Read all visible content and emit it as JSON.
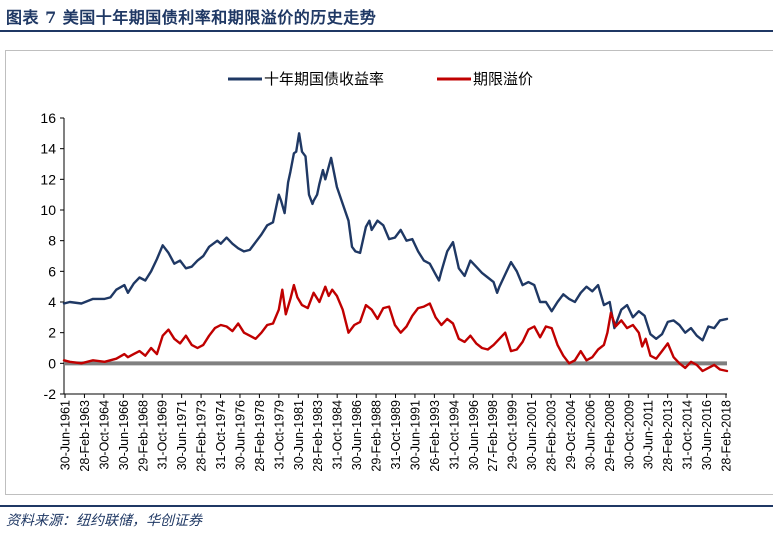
{
  "figure": {
    "title": "图表  7 美国十年期国债利率和期限溢价的历史走势",
    "source": "资料来源：纽约联储，华创证券"
  },
  "colors": {
    "yield": "#1f3864",
    "term_premium": "#c00000",
    "zero_line": "#808080",
    "title": "#1f3864"
  },
  "chart_data": {
    "type": "line",
    "title": "",
    "xlabel": "",
    "ylabel": "",
    "ylim": [
      -2,
      16
    ],
    "yticks": [
      "16",
      "14",
      "12",
      "10",
      "8",
      "6",
      "4",
      "2",
      "0",
      "-2"
    ],
    "x_range": [
      1961.5,
      2018.6
    ],
    "x_tick_labels": [
      "30-Jun-1961",
      "28-Feb-1963",
      "30-Oct-1964",
      "30-Jun-1966",
      "29-Feb-1968",
      "31-Oct-1969",
      "30-Jun-1971",
      "28-Feb-1973",
      "31-Oct-1974",
      "30-Jun-1976",
      "28-Feb-1978",
      "31-Oct-1979",
      "30-Jun-1981",
      "28-Feb-1983",
      "31-Oct-1984",
      "30-Jun-1986",
      "29-Feb-1988",
      "31-Oct-1989",
      "30-Jun-1991",
      "26-Feb-1993",
      "31-Oct-1994",
      "30-Jun-1996",
      "27-Feb-1998",
      "29-Oct-1999",
      "30-Jun-2001",
      "28-Feb-2003",
      "29-Oct-2004",
      "30-Jun-2006",
      "29-Feb-2008",
      "30-Oct-2009",
      "30-Jun-2011",
      "28-Feb-2013",
      "31-Oct-2014",
      "30-Jun-2016",
      "28-Feb-2018"
    ],
    "legend": [
      "十年期国债收益率",
      "期限溢价"
    ],
    "legend_position": "top-center",
    "series": [
      {
        "name": "十年期国债收益率",
        "x": [
          1961.5,
          1962,
          1963,
          1964,
          1965,
          1965.5,
          1966,
          1966.7,
          1967,
          1967.5,
          1968,
          1968.5,
          1969,
          1969.5,
          1970,
          1970.5,
          1971,
          1971.5,
          1972,
          1972.5,
          1973,
          1973.5,
          1974,
          1974.7,
          1975,
          1975.5,
          1976,
          1976.5,
          1977,
          1977.5,
          1978,
          1978.5,
          1979,
          1979.5,
          1980,
          1980.2,
          1980.5,
          1980.8,
          1981,
          1981.3,
          1981.5,
          1981.75,
          1982,
          1982.3,
          1982.6,
          1982.9,
          1983,
          1983.3,
          1983.5,
          1983.8,
          1984,
          1984.5,
          1985,
          1985.5,
          1986,
          1986.3,
          1986.6,
          1987,
          1987.5,
          1987.8,
          1988,
          1988.5,
          1989,
          1989.5,
          1990,
          1990.5,
          1991,
          1991.5,
          1992,
          1992.5,
          1993,
          1993.5,
          1993.8,
          1994,
          1994.5,
          1995,
          1995.5,
          1996,
          1996.5,
          1997,
          1997.5,
          1998,
          1998.5,
          1998.8,
          1999,
          1999.5,
          2000,
          2000.5,
          2001,
          2001.5,
          2002,
          2002.5,
          2003,
          2003.5,
          2004,
          2004.5,
          2005,
          2005.5,
          2006,
          2006.5,
          2007,
          2007.5,
          2008,
          2008.5,
          2008.9,
          2009,
          2009.5,
          2010,
          2010.5,
          2011,
          2011.5,
          2012,
          2012.5,
          2013,
          2013.5,
          2014,
          2014.5,
          2015,
          2015.5,
          2016,
          2016.5,
          2017,
          2017.5,
          2018,
          2018.6
        ],
        "values": [
          3.9,
          4.0,
          3.9,
          4.2,
          4.2,
          4.3,
          4.8,
          5.1,
          4.6,
          5.2,
          5.6,
          5.4,
          6.0,
          6.8,
          7.7,
          7.2,
          6.5,
          6.7,
          6.2,
          6.3,
          6.7,
          7.0,
          7.6,
          8.0,
          7.8,
          8.2,
          7.8,
          7.5,
          7.3,
          7.4,
          7.9,
          8.4,
          9.0,
          9.2,
          11.0,
          10.6,
          9.8,
          11.8,
          12.5,
          13.7,
          13.8,
          15.0,
          13.8,
          13.5,
          11.0,
          10.4,
          10.6,
          11.0,
          11.7,
          12.6,
          12.0,
          13.4,
          11.5,
          10.4,
          9.3,
          7.6,
          7.3,
          7.2,
          8.9,
          9.3,
          8.7,
          9.3,
          9.0,
          8.1,
          8.2,
          8.7,
          8.0,
          8.1,
          7.3,
          6.7,
          6.5,
          5.8,
          5.4,
          6.0,
          7.3,
          7.9,
          6.2,
          5.7,
          6.7,
          6.3,
          5.9,
          5.6,
          5.3,
          4.6,
          5.0,
          5.8,
          6.6,
          6.0,
          5.1,
          5.3,
          5.1,
          4.0,
          4.0,
          3.4,
          4.0,
          4.5,
          4.2,
          4.0,
          4.6,
          5.0,
          4.7,
          5.1,
          3.8,
          4.0,
          2.3,
          2.5,
          3.5,
          3.8,
          3.0,
          3.4,
          3.1,
          1.9,
          1.6,
          1.9,
          2.7,
          2.8,
          2.5,
          2.0,
          2.3,
          1.8,
          1.5,
          2.4,
          2.3,
          2.8,
          2.9
        ]
      },
      {
        "name": "期限溢价",
        "x": [
          1961.5,
          1962,
          1963,
          1964,
          1965,
          1966,
          1966.7,
          1967,
          1967.5,
          1968,
          1968.5,
          1969,
          1969.5,
          1970,
          1970.5,
          1971,
          1971.5,
          1972,
          1972.5,
          1973,
          1973.5,
          1974,
          1974.5,
          1975,
          1975.5,
          1976,
          1976.5,
          1977,
          1977.5,
          1978,
          1978.5,
          1979,
          1979.5,
          1980,
          1980.3,
          1980.6,
          1981,
          1981.3,
          1981.6,
          1982,
          1982.5,
          1983,
          1983.5,
          1984,
          1984.3,
          1984.6,
          1985,
          1985.5,
          1986,
          1986.5,
          1987,
          1987.5,
          1988,
          1988.5,
          1989,
          1989.5,
          1990,
          1990.5,
          1991,
          1991.5,
          1992,
          1992.5,
          1993,
          1993.5,
          1994,
          1994.5,
          1995,
          1995.5,
          1996,
          1996.5,
          1997,
          1997.5,
          1998,
          1998.5,
          1999,
          1999.5,
          2000,
          2000.5,
          2001,
          2001.5,
          2002,
          2002.5,
          2003,
          2003.5,
          2004,
          2004.5,
          2005,
          2005.5,
          2006,
          2006.5,
          2007,
          2007.5,
          2008,
          2008.3,
          2008.6,
          2009,
          2009.5,
          2010,
          2010.5,
          2011,
          2011.3,
          2011.6,
          2012,
          2012.5,
          2013,
          2013.5,
          2014,
          2014.5,
          2015,
          2015.5,
          2016,
          2016.5,
          2017,
          2017.5,
          2018,
          2018.6
        ],
        "values": [
          0.2,
          0.1,
          0.0,
          0.2,
          0.1,
          0.3,
          0.6,
          0.4,
          0.6,
          0.8,
          0.5,
          1.0,
          0.6,
          1.8,
          2.2,
          1.6,
          1.3,
          1.8,
          1.2,
          1.0,
          1.2,
          1.8,
          2.3,
          2.5,
          2.4,
          2.1,
          2.6,
          2.0,
          1.8,
          1.6,
          2.0,
          2.5,
          2.6,
          3.5,
          4.8,
          3.2,
          4.2,
          5.1,
          4.3,
          3.8,
          3.6,
          4.6,
          4.0,
          5.0,
          4.4,
          4.8,
          4.4,
          3.5,
          2.0,
          2.5,
          2.7,
          3.8,
          3.5,
          2.9,
          3.6,
          3.7,
          2.5,
          2.0,
          2.4,
          3.1,
          3.6,
          3.7,
          3.9,
          3.0,
          2.5,
          2.9,
          2.6,
          1.6,
          1.4,
          1.8,
          1.3,
          1.0,
          0.9,
          1.2,
          1.6,
          2.0,
          0.8,
          0.9,
          1.4,
          2.2,
          2.4,
          1.7,
          2.4,
          2.3,
          1.2,
          0.5,
          0.0,
          0.2,
          0.8,
          0.2,
          0.4,
          0.9,
          1.2,
          2.0,
          3.3,
          2.4,
          2.8,
          2.3,
          2.5,
          2.0,
          1.1,
          1.6,
          0.5,
          0.3,
          0.8,
          1.3,
          0.4,
          0.0,
          -0.3,
          0.1,
          -0.1,
          -0.5,
          -0.3,
          -0.1,
          -0.4,
          -0.5
        ]
      }
    ]
  }
}
